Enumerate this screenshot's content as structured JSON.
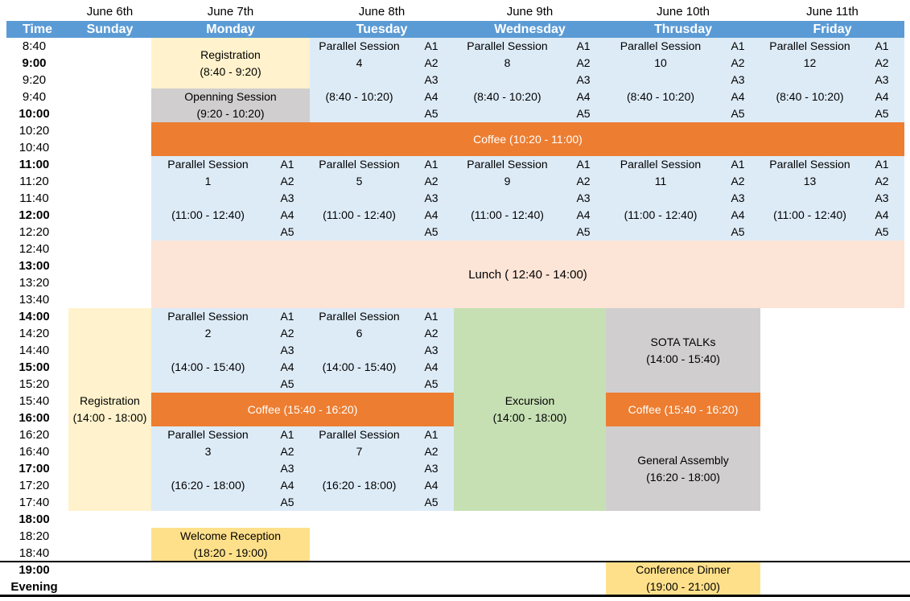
{
  "dates": [
    "June 6th",
    "June 7th",
    "June 8th",
    "June 9th",
    "June 10th",
    "June 11th"
  ],
  "days": [
    "Time",
    "Sunday",
    "Monday",
    "Tuesday",
    "Wednesday",
    "Thrusday",
    "Friday"
  ],
  "rooms": [
    "A1",
    "A2",
    "A3",
    "A4",
    "A5"
  ],
  "timeline": [
    {
      "t": "8:40",
      "b": 0
    },
    {
      "t": "9:00",
      "b": 1
    },
    {
      "t": "9:20",
      "b": 0
    },
    {
      "t": "9:40",
      "b": 0
    },
    {
      "t": "10:00",
      "b": 1
    },
    {
      "t": "10:20",
      "b": 0
    },
    {
      "t": "10:40",
      "b": 0
    },
    {
      "t": "11:00",
      "b": 1
    },
    {
      "t": "11:20",
      "b": 0
    },
    {
      "t": "11:40",
      "b": 0
    },
    {
      "t": "12:00",
      "b": 1
    },
    {
      "t": "12:20",
      "b": 0
    },
    {
      "t": "12:40",
      "b": 0
    },
    {
      "t": "13:00",
      "b": 1
    },
    {
      "t": "13:20",
      "b": 0
    },
    {
      "t": "13:40",
      "b": 0
    },
    {
      "t": "14:00",
      "b": 1
    },
    {
      "t": "14:20",
      "b": 0
    },
    {
      "t": "14:40",
      "b": 0
    },
    {
      "t": "15:00",
      "b": 1
    },
    {
      "t": "15:20",
      "b": 0
    },
    {
      "t": "15:40",
      "b": 0
    },
    {
      "t": "16:00",
      "b": 1
    },
    {
      "t": "16:20",
      "b": 0
    },
    {
      "t": "16:40",
      "b": 0
    },
    {
      "t": "17:00",
      "b": 1
    },
    {
      "t": "17:20",
      "b": 0
    },
    {
      "t": "17:40",
      "b": 0
    },
    {
      "t": "18:00",
      "b": 1
    },
    {
      "t": "18:20",
      "b": 0
    },
    {
      "t": "18:40",
      "b": 0
    },
    {
      "t": "19:00",
      "b": 1
    },
    {
      "t": "Evening",
      "b": 1
    }
  ],
  "sessions": {
    "ps1": {
      "title": "Parallel Session",
      "number": "1",
      "time": "(11:00 - 12:40)"
    },
    "ps2": {
      "title": "Parallel Session",
      "number": "2",
      "time": "(14:00 - 15:40)"
    },
    "ps3": {
      "title": "Parallel Session",
      "number": "3",
      "time": "(16:20 - 18:00)"
    },
    "ps4": {
      "title": "Parallel Session",
      "number": "4",
      "time": "(8:40 - 10:20)"
    },
    "ps5": {
      "title": "Parallel Session",
      "number": "5",
      "time": "(11:00 - 12:40)"
    },
    "ps6": {
      "title": "Parallel Session",
      "number": "6",
      "time": "(14:00 - 15:40)"
    },
    "ps7": {
      "title": "Parallel Session",
      "number": "7",
      "time": "(16:20 - 18:00)"
    },
    "ps8": {
      "title": "Parallel Session",
      "number": "8",
      "time": "(8:40 - 10:20)"
    },
    "ps9": {
      "title": "Parallel Session",
      "number": "9",
      "time": "(11:00 - 12:40)"
    },
    "ps10": {
      "title": "Parallel Session",
      "number": "10",
      "time": "(8:40 - 10:20)"
    },
    "ps11": {
      "title": "Parallel Session",
      "number": "11",
      "time": "(11:00 - 12:40)"
    },
    "ps12": {
      "title": "Parallel Session",
      "number": "12",
      "time": "(8:40 - 10:20)"
    },
    "ps13": {
      "title": "Parallel Session",
      "number": "13",
      "time": "(11:00 - 12:40)"
    }
  },
  "events": {
    "reg_mon": {
      "title": "Registration",
      "time": "(8:40 - 9:20)"
    },
    "opening": {
      "title": "Openning Session",
      "time": "(9:20 - 10:20)"
    },
    "coffee_morning": {
      "label": "Coffee (10:20 - 11:00)"
    },
    "lunch": {
      "label": "Lunch ( 12:40 - 14:00)"
    },
    "reg_sun": {
      "title": "Registration",
      "time": "(14:00 - 18:00)"
    },
    "coffee_afternoon": {
      "label": "Coffee (15:40 - 16:20)"
    },
    "excursion": {
      "title": "Excursion",
      "time": "(14:00 - 18:00)"
    },
    "sota": {
      "title": "SOTA TALKs",
      "time": "(14:00 - 15:40)"
    },
    "assembly": {
      "title": "General Assembly",
      "time": "(16:20 - 18:00)"
    },
    "welcome": {
      "title": "Welcome Reception",
      "time": "(18:20 - 19:00)"
    },
    "dinner": {
      "title": "Conference Dinner",
      "time": "(19:00 - 21:00)"
    }
  },
  "colors": {
    "header_blue": "#5B9BD5",
    "session_blue": "#DDEBF7",
    "registration_cream": "#FFF2CC",
    "session_gray": "#D0CECE",
    "coffee_orange": "#ED7D31",
    "lunch_peach": "#FCE4D6",
    "excursion_green": "#C6E0B4",
    "reception_gold": "#FFE08A"
  }
}
